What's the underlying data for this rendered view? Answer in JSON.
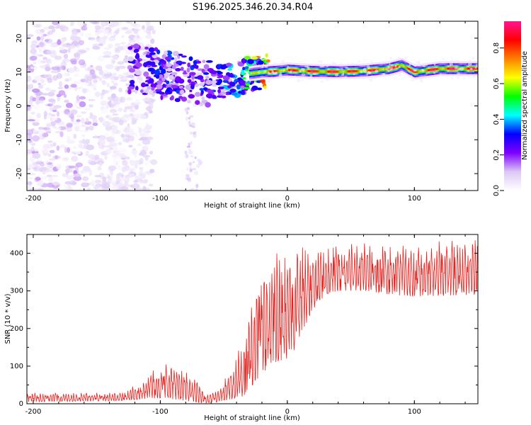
{
  "title": "S196.2025.346.20.34.R04",
  "chart_data": [
    {
      "type": "heatmap",
      "name": "spectrogram",
      "xlabel": "Height of straight line (km)",
      "ylabel": "Frequency (Hz)",
      "xlim": [
        -205,
        150
      ],
      "ylim": [
        -25,
        25
      ],
      "xticks": [
        -200,
        -100,
        0,
        100
      ],
      "xtick_labels": [
        "-200",
        "-100",
        "0",
        "100"
      ],
      "yticks": [
        -20,
        -10,
        0,
        10,
        20
      ],
      "ytick_labels": [
        "-20",
        "-10",
        "0",
        "10",
        "20"
      ],
      "colorbar": {
        "label": "Normalized spectral amplitude",
        "range": [
          0,
          0.95
        ],
        "ticks": [
          0,
          0.2,
          0.4,
          0.6,
          0.8
        ],
        "tick_labels": [
          "0.0",
          "0.2",
          "0.4",
          "0.6",
          "0.8"
        ],
        "colormap": [
          "#ffffff",
          "#dcc8f5",
          "#7f00ff",
          "#0000ff",
          "#00ffff",
          "#00ff00",
          "#ffff00",
          "#ff8000",
          "#ff0000",
          "#ff1493"
        ]
      },
      "ridge": {
        "x": [
          -120,
          -100,
          -80,
          -60,
          -40,
          -30,
          -20,
          -10,
          0,
          20,
          40,
          60,
          80,
          90,
          100,
          120,
          150
        ],
        "freq": [
          11,
          9.5,
          8,
          7,
          7.5,
          9.5,
          10,
          10.2,
          10.6,
          10.2,
          10.1,
          10.3,
          11,
          12,
          10,
          11,
          11
        ],
        "peak_amplitude": [
          0.3,
          0.35,
          0.35,
          0.35,
          0.45,
          0.6,
          0.85,
          0.9,
          0.9,
          0.95,
          0.95,
          0.9,
          0.95,
          0.95,
          0.9,
          0.95,
          0.95
        ]
      }
    },
    {
      "type": "line",
      "name": "snr",
      "xlabel": "Height of straight line (km)",
      "ylabel": "SNR (10 * v/v)",
      "xlim": [
        -205,
        150
      ],
      "ylim": [
        0,
        450
      ],
      "xticks": [
        -200,
        -100,
        0,
        100
      ],
      "xtick_labels": [
        "-200",
        "-100",
        "0",
        "100"
      ],
      "yticks": [
        0,
        100,
        200,
        300,
        400
      ],
      "ytick_labels": [
        "0",
        "100",
        "200",
        "300",
        "400"
      ],
      "color": "#e8201c",
      "envelope": {
        "x": [
          -205,
          -130,
          -115,
          -100,
          -90,
          -75,
          -65,
          -55,
          -45,
          -35,
          -30,
          -25,
          -20,
          -10,
          0,
          5,
          10,
          20,
          30,
          40,
          60,
          80,
          100,
          150
        ],
        "low": [
          5,
          8,
          12,
          15,
          12,
          5,
          2,
          5,
          10,
          20,
          30,
          60,
          80,
          110,
          120,
          140,
          170,
          250,
          290,
          300,
          300,
          290,
          285,
          290
        ],
        "high": [
          30,
          30,
          60,
          110,
          100,
          80,
          30,
          40,
          90,
          200,
          280,
          360,
          380,
          400,
          420,
          400,
          420,
          410,
          420,
          430,
          430,
          430,
          430,
          440
        ]
      }
    }
  ]
}
